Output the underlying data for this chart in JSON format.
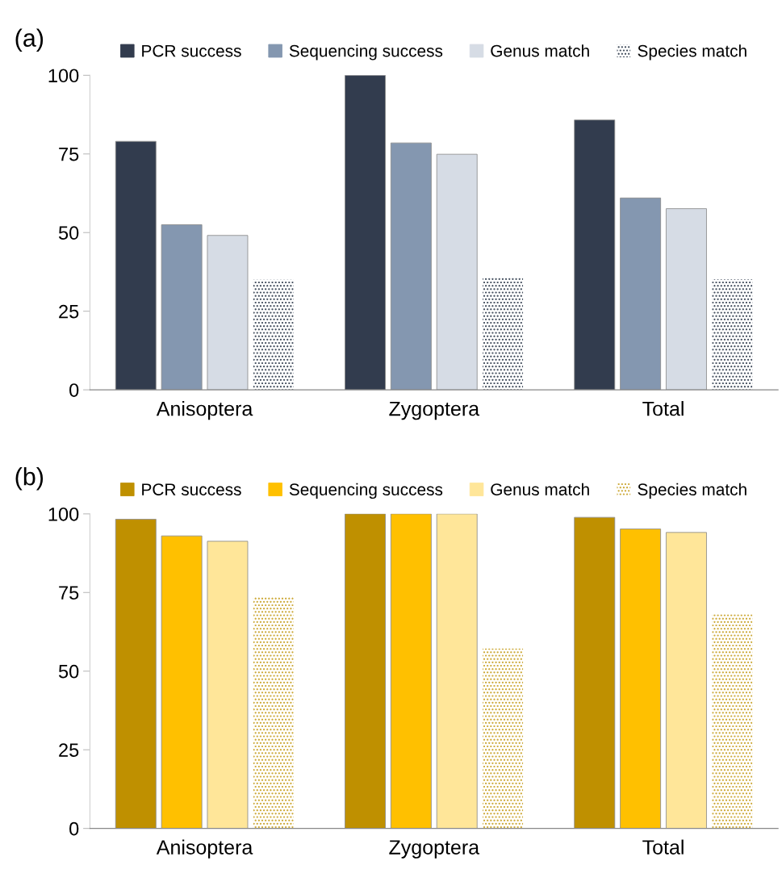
{
  "chart_data": [
    {
      "type": "bar",
      "title": "(a)",
      "categories": [
        "Anisoptera",
        "Zygoptera",
        "Total"
      ],
      "ylim": [
        0,
        100
      ],
      "yticks": [
        0,
        25,
        50,
        75,
        100
      ],
      "grid": false,
      "legend": "top",
      "series": [
        {
          "name": "PCR success",
          "color": "#323c4e",
          "values": [
            79,
            100,
            85.8
          ]
        },
        {
          "name": "Sequencing success",
          "color": "#8497b0",
          "values": [
            52.5,
            78.5,
            61
          ]
        },
        {
          "name": "Genus match",
          "color": "#d6dce5",
          "values": [
            49.1,
            74.9,
            57.6
          ]
        },
        {
          "name": "Species match",
          "color": "#333f50",
          "values": [
            35,
            35.8,
            35.1
          ]
        }
      ]
    },
    {
      "type": "bar",
      "title": "(b)",
      "categories": [
        "Anisoptera",
        "Zygoptera",
        "Total"
      ],
      "ylim": [
        0,
        100
      ],
      "yticks": [
        0,
        25,
        50,
        75,
        100
      ],
      "grid": false,
      "legend": "top",
      "series": [
        {
          "name": "PCR success",
          "color": "#bf9000",
          "values": [
            98.3,
            100,
            98.9
          ]
        },
        {
          "name": "Sequencing success",
          "color": "#ffc000",
          "values": [
            93,
            100,
            95.2
          ]
        },
        {
          "name": "Genus match",
          "color": "#ffe699",
          "values": [
            91.3,
            100,
            94.1
          ]
        },
        {
          "name": "Species match",
          "color": "#c9a227",
          "values": [
            73.7,
            57.2,
            68.1
          ]
        }
      ]
    }
  ]
}
